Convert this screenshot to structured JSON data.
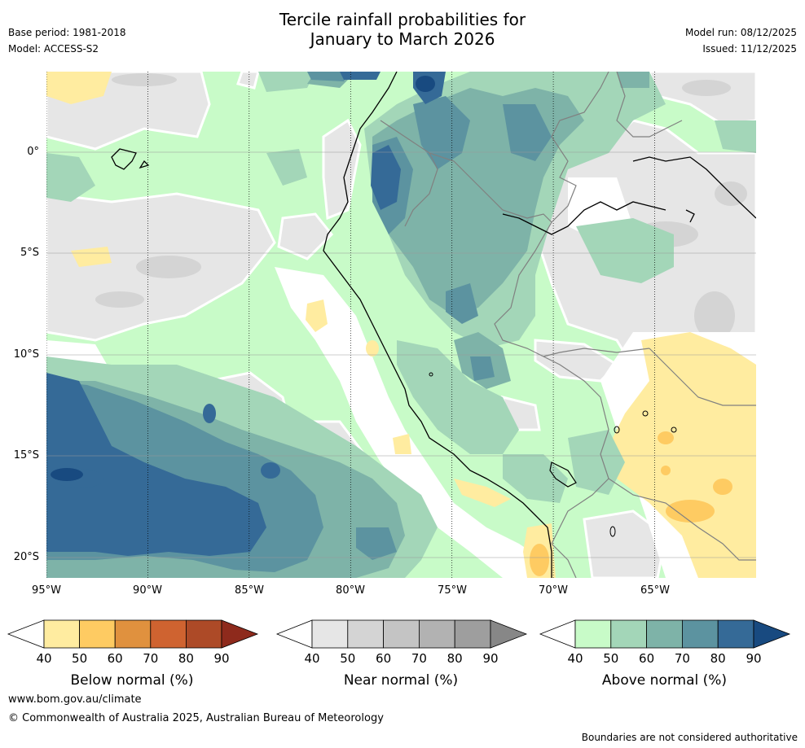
{
  "header": {
    "title_line1": "Tercile rainfall probabilities for",
    "title_line2": "January to March 2026",
    "base_period": "Base period: 1981-2018",
    "model": "Model: ACCESS-S2",
    "model_run": "Model run: 08/12/2025",
    "issued": "Issued: 11/12/2025"
  },
  "axes": {
    "lat_labels": [
      "0°",
      "5°S",
      "10°S",
      "15°S",
      "20°S"
    ],
    "lon_labels": [
      "95°W",
      "90°W",
      "85°W",
      "80°W",
      "75°W",
      "70°W",
      "65°W"
    ]
  },
  "colors": {
    "below": [
      "#ffeca0",
      "#fecb62",
      "#e0913e",
      "#cf6330",
      "#ad4a27",
      "#8e2a1c"
    ],
    "near": [
      "#e6e6e6",
      "#d4d4d4",
      "#c4c4c4",
      "#b2b2b2",
      "#9e9e9e",
      "#878787"
    ],
    "above": [
      "#c8fbc8",
      "#a3d6b8",
      "#7eb3a8",
      "#5c93a0",
      "#356a97",
      "#184a80"
    ],
    "coast": "#000000",
    "border": "#808080",
    "land_bg": "#ffffff"
  },
  "colorbars": [
    {
      "id": "below",
      "label": "Below normal (%)",
      "ticks": [
        "40",
        "50",
        "60",
        "70",
        "80",
        "90"
      ]
    },
    {
      "id": "near",
      "label": "Near normal (%)",
      "ticks": [
        "40",
        "50",
        "60",
        "70",
        "80",
        "90"
      ]
    },
    {
      "id": "above",
      "label": "Above normal (%)",
      "ticks": [
        "40",
        "50",
        "60",
        "70",
        "80",
        "90"
      ]
    }
  ],
  "footer": {
    "website": "www.bom.gov.au/climate",
    "copyright": "© Commonwealth of Australia 2025, Australian Bureau of Meteorology",
    "disclaimer": "Boundaries are not considered authoritative"
  }
}
